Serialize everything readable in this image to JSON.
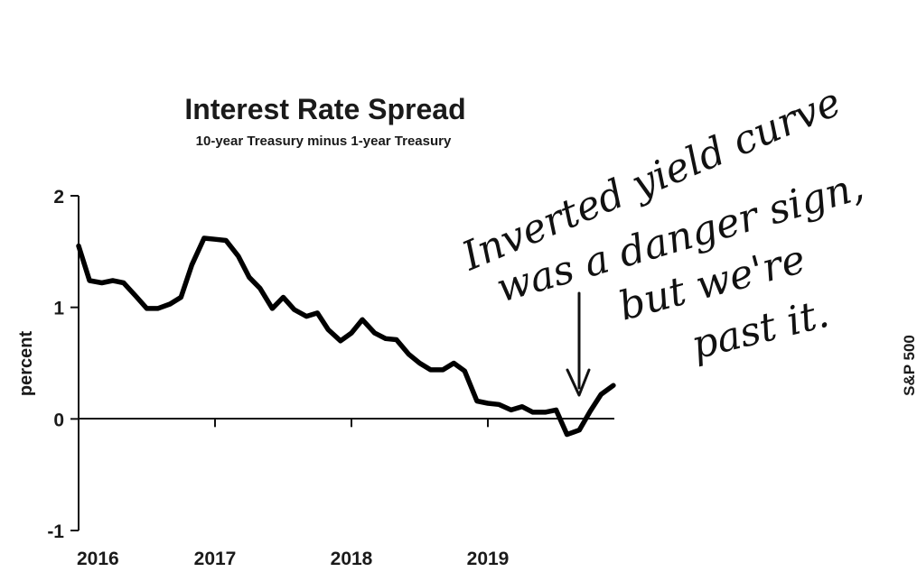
{
  "chart_data": {
    "type": "line",
    "title": "Interest Rate Spread",
    "subtitle": "10-year Treasury minus 1-year Treasury",
    "ylabel": "percent",
    "ylim": [
      -1,
      2
    ],
    "xlim": [
      2016,
      2019.95
    ],
    "y_ticks": [
      "2",
      "1",
      "0",
      "-1"
    ],
    "x_ticks": [
      "2016",
      "2017",
      "2018",
      "2019"
    ],
    "grid": false,
    "series": [
      {
        "x": [
          2016.0,
          2016.08,
          2016.17,
          2016.25,
          2016.33,
          2016.42,
          2016.5,
          2016.58,
          2016.67,
          2016.75,
          2016.83,
          2016.92,
          2017.0,
          2017.08,
          2017.17,
          2017.25,
          2017.33,
          2017.42,
          2017.5,
          2017.58,
          2017.67,
          2017.75,
          2017.83,
          2017.92,
          2018.0,
          2018.08,
          2018.17,
          2018.25,
          2018.33,
          2018.42,
          2018.5,
          2018.58,
          2018.67,
          2018.75,
          2018.83,
          2018.92,
          2019.0,
          2019.08,
          2019.17,
          2019.25,
          2019.33,
          2019.42,
          2019.5,
          2019.58,
          2019.67,
          2019.75,
          2019.83,
          2019.92
        ],
        "y": [
          1.55,
          1.24,
          1.22,
          1.24,
          1.22,
          1.1,
          0.99,
          0.99,
          1.03,
          1.09,
          1.38,
          1.62,
          1.61,
          1.6,
          1.46,
          1.27,
          1.17,
          0.99,
          1.09,
          0.98,
          0.92,
          0.95,
          0.8,
          0.7,
          0.77,
          0.89,
          0.77,
          0.72,
          0.71,
          0.58,
          0.5,
          0.44,
          0.44,
          0.5,
          0.43,
          0.16,
          0.14,
          0.13,
          0.08,
          0.11,
          0.06,
          0.06,
          0.08,
          -0.14,
          -0.1,
          0.07,
          0.22,
          0.3
        ]
      }
    ]
  },
  "side_label": "S&P 500",
  "annotation": {
    "lines": [
      "Inverted yield curve",
      "was a danger sign,",
      "but we're",
      "past it."
    ]
  }
}
